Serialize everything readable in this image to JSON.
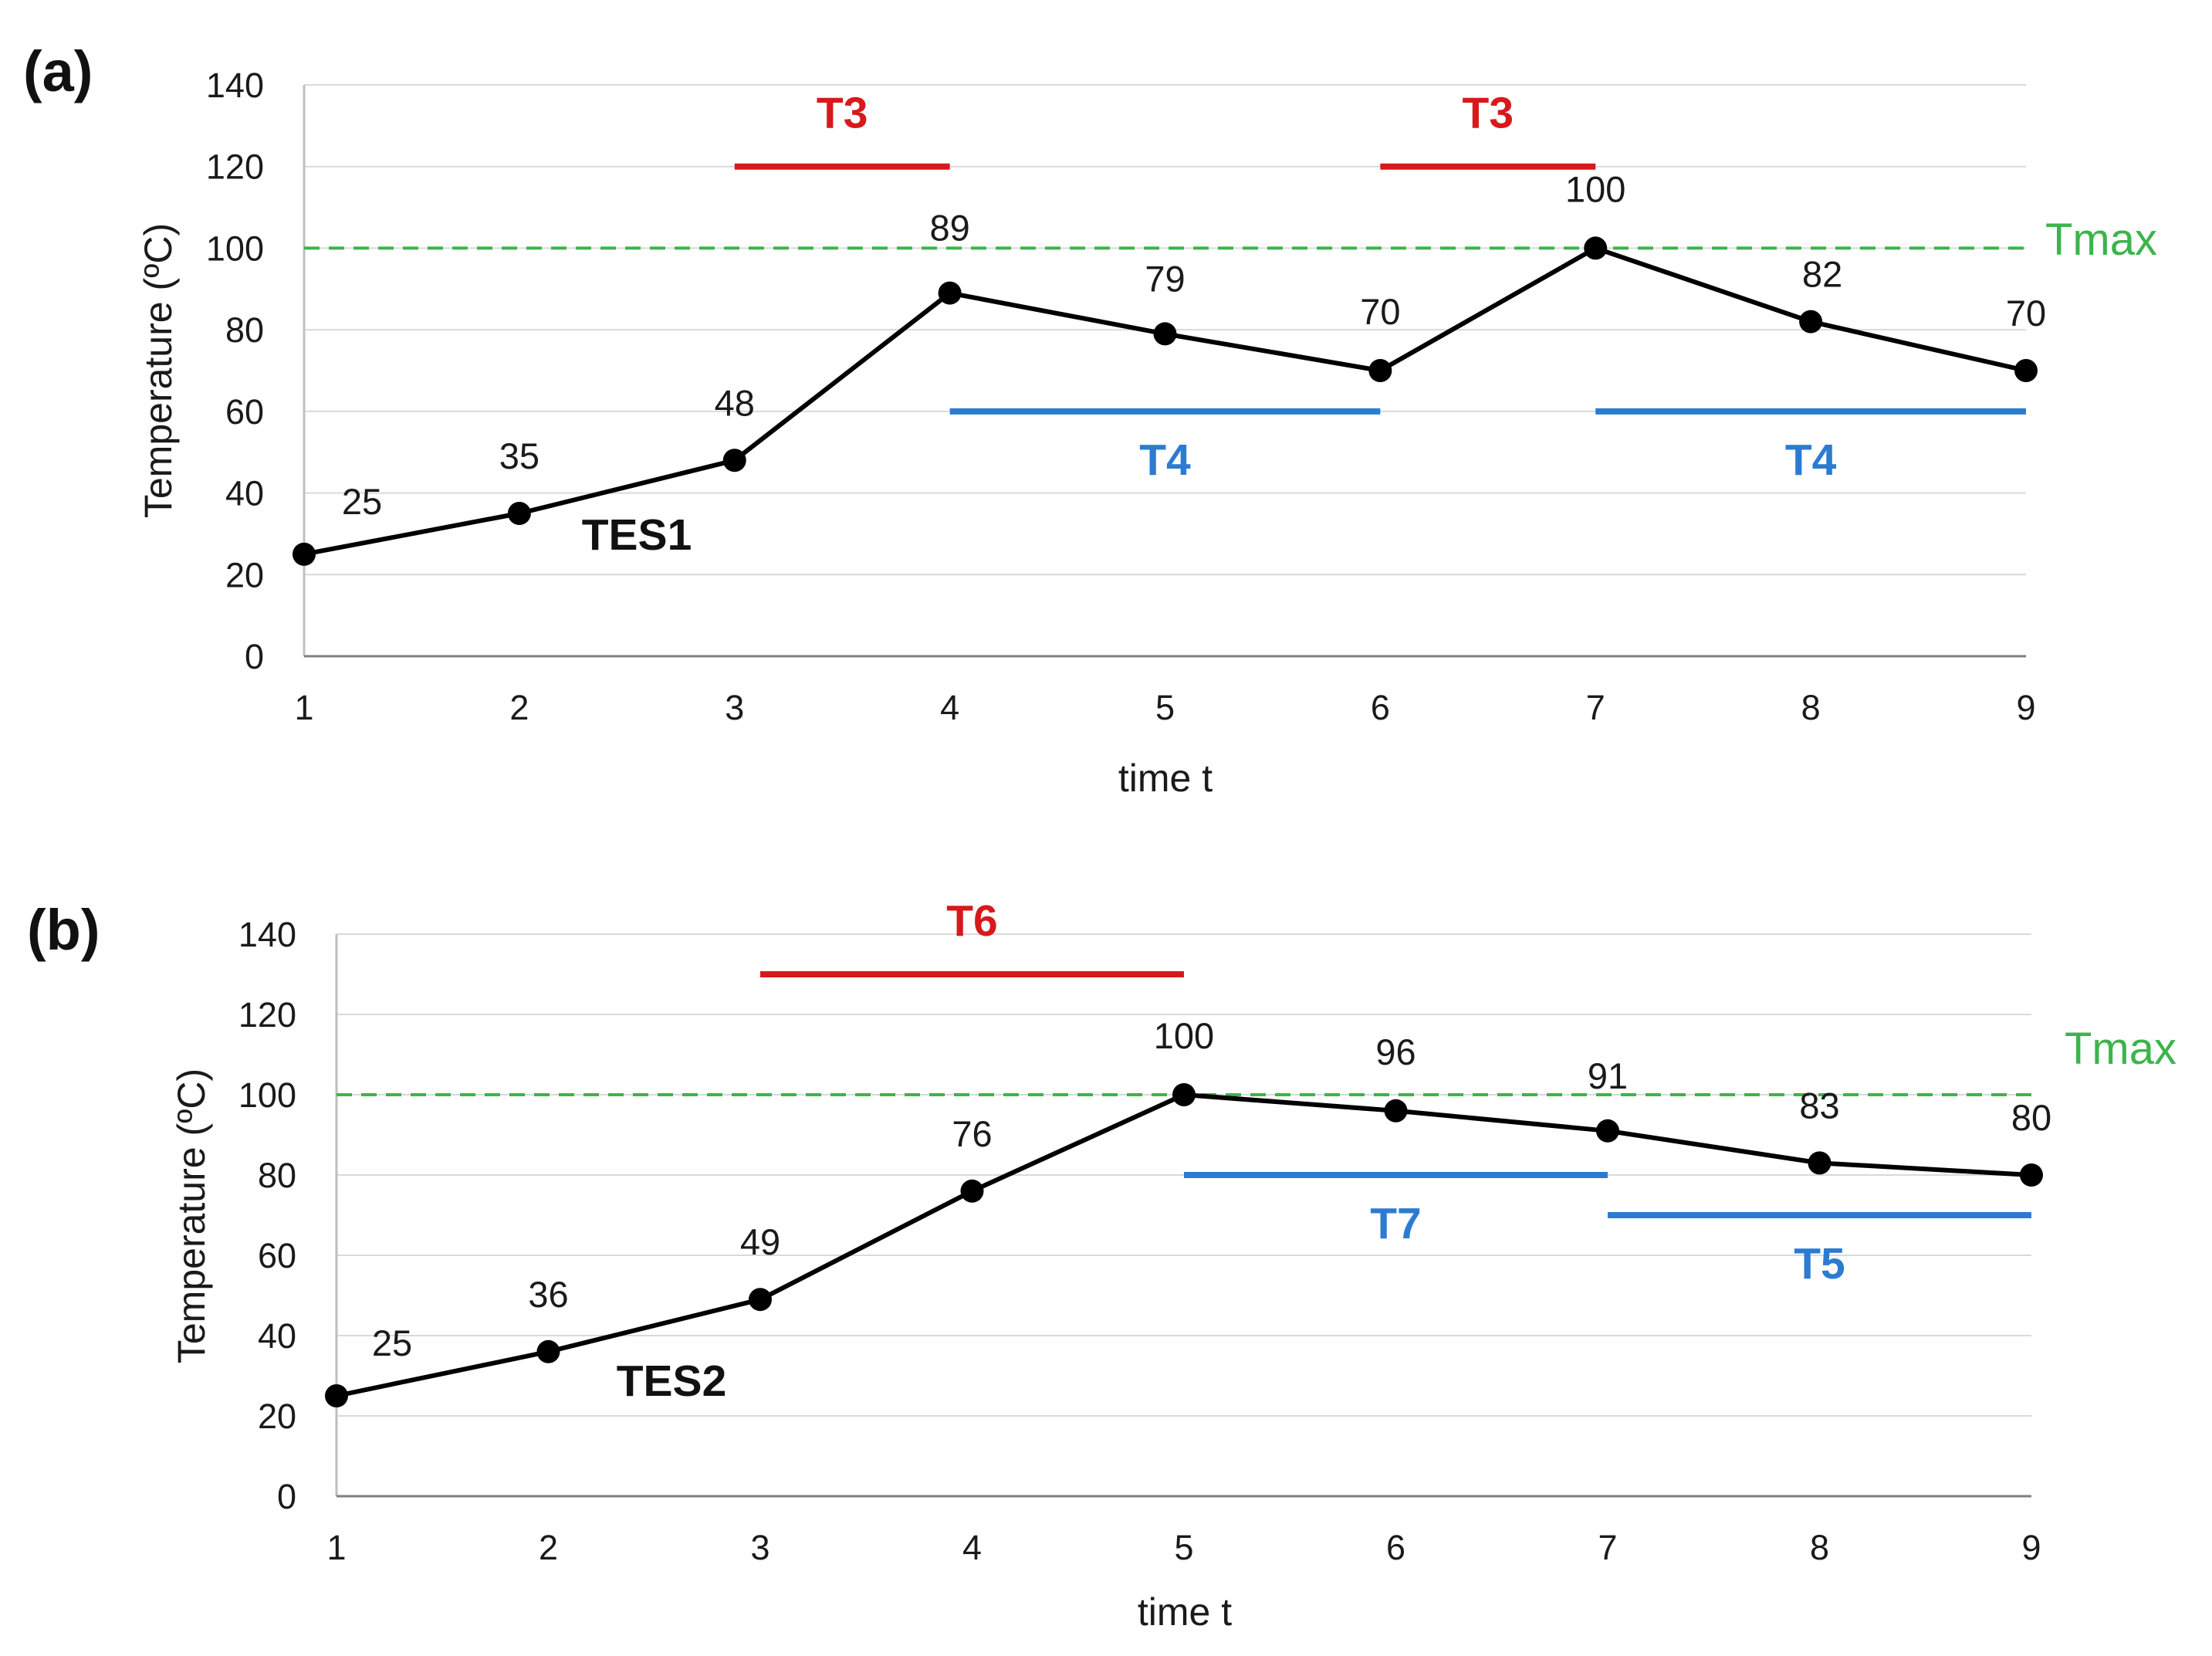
{
  "chart_data": [
    {
      "type": "line",
      "panel_label": "(a)",
      "title": "",
      "xlabel": "time t",
      "ylabel": "Temperature (ºC)",
      "x": [
        1,
        2,
        3,
        4,
        5,
        6,
        7,
        8,
        9
      ],
      "x_tick_labels": [
        "1",
        "2",
        "3",
        "4",
        "5",
        "6",
        "7",
        "8",
        "9"
      ],
      "ylim": [
        0,
        140
      ],
      "y_ticks": [
        0,
        20,
        40,
        60,
        80,
        100,
        120,
        140
      ],
      "y_tick_labels": [
        "0",
        "20",
        "40",
        "60",
        "80",
        "100",
        "120",
        "140"
      ],
      "grid": "horizontal",
      "series": [
        {
          "name": "TES1",
          "values": [
            25,
            35,
            48,
            89,
            79,
            70,
            100,
            82,
            70
          ],
          "data_labels": [
            "25",
            "35",
            "48",
            "89",
            "79",
            "70",
            "100",
            "82",
            "70"
          ],
          "color": "#000000"
        }
      ],
      "reference_lines": [
        {
          "label": "Tmax",
          "y": 100,
          "style": "dashed",
          "color": "#3cb44b"
        }
      ],
      "intervals": [
        {
          "label": "T3",
          "x_start": 3,
          "x_end": 4,
          "y": 120,
          "color": "#d7191c",
          "label_position": "above"
        },
        {
          "label": "T3",
          "x_start": 6,
          "x_end": 7,
          "y": 120,
          "color": "#d7191c",
          "label_position": "above"
        },
        {
          "label": "T4",
          "x_start": 4,
          "x_end": 6,
          "y": 60,
          "color": "#2c7bd1",
          "label_position": "below"
        },
        {
          "label": "T4",
          "x_start": 7,
          "x_end": 9,
          "y": 60,
          "color": "#2c7bd1",
          "label_position": "below"
        }
      ]
    },
    {
      "type": "line",
      "panel_label": "(b)",
      "title": "",
      "xlabel": "time t",
      "ylabel": "Temperature (ºC)",
      "x": [
        1,
        2,
        3,
        4,
        5,
        6,
        7,
        8,
        9
      ],
      "x_tick_labels": [
        "1",
        "2",
        "3",
        "4",
        "5",
        "6",
        "7",
        "8",
        "9"
      ],
      "ylim": [
        0,
        140
      ],
      "y_ticks": [
        0,
        20,
        40,
        60,
        80,
        100,
        120,
        140
      ],
      "y_tick_labels": [
        "0",
        "20",
        "40",
        "60",
        "80",
        "100",
        "120",
        "140"
      ],
      "grid": "horizontal",
      "series": [
        {
          "name": "TES2",
          "values": [
            25,
            36,
            49,
            76,
            100,
            96,
            91,
            83,
            80
          ],
          "data_labels": [
            "25",
            "36",
            "49",
            "76",
            "100",
            "96",
            "91",
            "83",
            "80"
          ],
          "color": "#000000"
        }
      ],
      "reference_lines": [
        {
          "label": "Tmax",
          "y": 100,
          "style": "dashed",
          "color": "#3cb44b"
        }
      ],
      "intervals": [
        {
          "label": "T6",
          "x_start": 3,
          "x_end": 5,
          "y": 130,
          "color": "#d7191c",
          "label_position": "above"
        },
        {
          "label": "T7",
          "x_start": 5,
          "x_end": 7,
          "y": 80,
          "color": "#2c7bd1",
          "label_position": "below"
        },
        {
          "label": "T5",
          "x_start": 7,
          "x_end": 9,
          "y": 70,
          "color": "#2c7bd1",
          "label_position": "below"
        }
      ]
    }
  ]
}
